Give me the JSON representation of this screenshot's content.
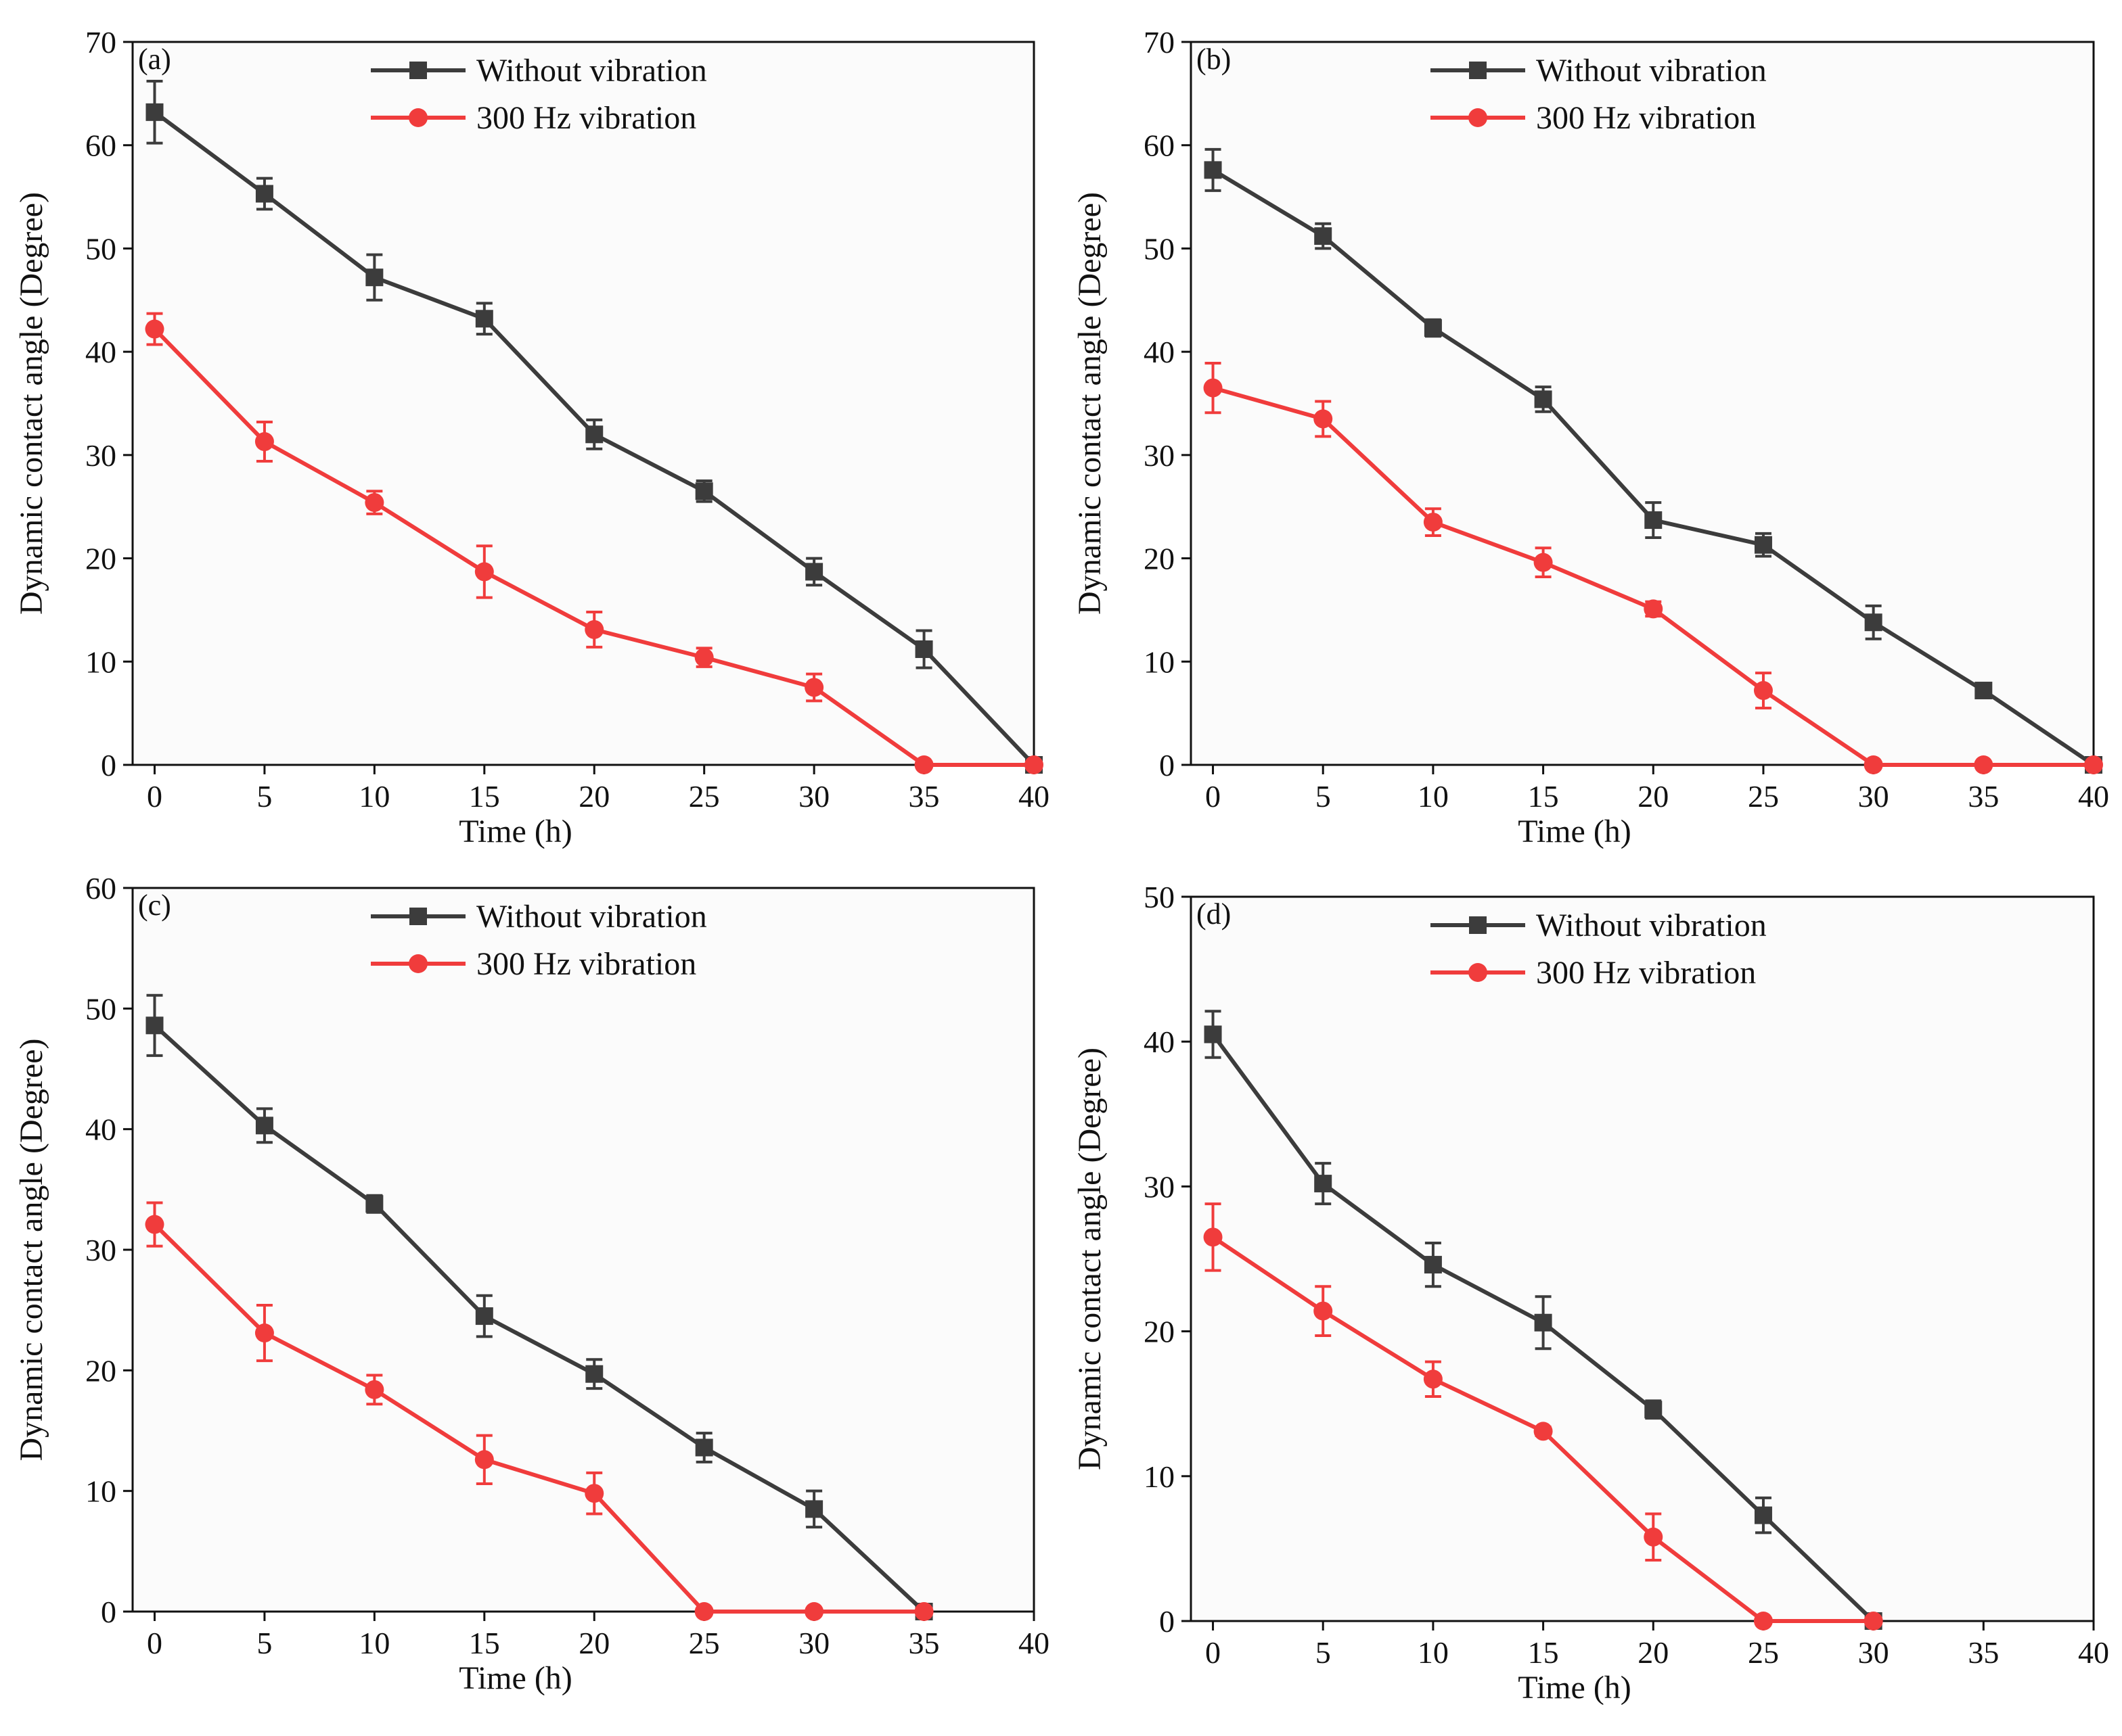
{
  "colors": {
    "plot_background": "#fbfbfb",
    "axis": "#111111",
    "without_vibration": "#3c3c3c",
    "vibration_300hz": "#f03c3c"
  },
  "chart_data": [
    {
      "type": "line",
      "panel_label": "(a)",
      "xlabel": "Time (h)",
      "ylabel": "Dynamic contact angle (Degree)",
      "xlim": [
        -1,
        40
      ],
      "ylim": [
        0,
        70
      ],
      "xticks": [
        0,
        5,
        10,
        15,
        20,
        25,
        30,
        35,
        40
      ],
      "yticks": [
        0,
        10,
        20,
        30,
        40,
        50,
        60,
        70
      ],
      "legend_position": "top-right",
      "series": [
        {
          "name": "Without vibration",
          "marker": "square",
          "color": "#3c3c3c",
          "x": [
            0,
            5,
            10,
            15,
            20,
            25,
            30,
            35,
            40
          ],
          "y": [
            63.2,
            55.3,
            47.2,
            43.2,
            32.0,
            26.5,
            18.7,
            11.2,
            0
          ],
          "err": [
            3.0,
            1.5,
            2.2,
            1.5,
            1.4,
            1.0,
            1.3,
            1.8,
            0
          ]
        },
        {
          "name": "300 Hz vibration",
          "marker": "circle",
          "color": "#f03c3c",
          "x": [
            0,
            5,
            10,
            15,
            20,
            25,
            30,
            35,
            40
          ],
          "y": [
            42.2,
            31.3,
            25.4,
            18.7,
            13.1,
            10.4,
            7.5,
            0,
            0
          ],
          "err": [
            1.5,
            1.9,
            1.1,
            2.5,
            1.7,
            0.9,
            1.3,
            0,
            0
          ]
        }
      ]
    },
    {
      "type": "line",
      "panel_label": "(b)",
      "xlabel": "Time (h)",
      "ylabel": "Dynamic contact angle (Degree)",
      "xlim": [
        -1,
        40
      ],
      "ylim": [
        0,
        70
      ],
      "xticks": [
        0,
        5,
        10,
        15,
        20,
        25,
        30,
        35,
        40
      ],
      "yticks": [
        0,
        10,
        20,
        30,
        40,
        50,
        60,
        70
      ],
      "legend_position": "top-right",
      "series": [
        {
          "name": "Without vibration",
          "marker": "square",
          "color": "#3c3c3c",
          "x": [
            0,
            5,
            10,
            15,
            20,
            25,
            30,
            35,
            40
          ],
          "y": [
            57.6,
            51.2,
            42.3,
            35.4,
            23.7,
            21.3,
            13.8,
            7.2,
            0
          ],
          "err": [
            2.0,
            1.2,
            0.8,
            1.2,
            1.7,
            1.1,
            1.6,
            0.7,
            0
          ]
        },
        {
          "name": "300 Hz vibration",
          "marker": "circle",
          "color": "#f03c3c",
          "x": [
            0,
            5,
            10,
            15,
            20,
            25,
            30,
            35,
            40
          ],
          "y": [
            36.5,
            33.5,
            23.5,
            19.6,
            15.1,
            7.2,
            0,
            0,
            0
          ],
          "err": [
            2.4,
            1.7,
            1.3,
            1.4,
            0.7,
            1.7,
            0,
            0,
            0
          ]
        }
      ]
    },
    {
      "type": "line",
      "panel_label": "(c)",
      "xlabel": "Time (h)",
      "ylabel": "Dynamic contact angle (Degree)",
      "xlim": [
        -1,
        40
      ],
      "ylim": [
        0,
        60
      ],
      "xticks": [
        0,
        5,
        10,
        15,
        20,
        25,
        30,
        35,
        40
      ],
      "yticks": [
        0,
        10,
        20,
        30,
        40,
        50,
        60
      ],
      "legend_position": "top-right",
      "series": [
        {
          "name": "Without vibration",
          "marker": "square",
          "color": "#3c3c3c",
          "x": [
            0,
            5,
            10,
            15,
            20,
            25,
            30,
            35
          ],
          "y": [
            48.6,
            40.3,
            33.8,
            24.5,
            19.7,
            13.6,
            8.5,
            0
          ],
          "err": [
            2.5,
            1.4,
            0.7,
            1.7,
            1.2,
            1.2,
            1.5,
            0
          ]
        },
        {
          "name": "300 Hz vibration",
          "marker": "circle",
          "color": "#f03c3c",
          "x": [
            0,
            5,
            10,
            15,
            20,
            25,
            30,
            35
          ],
          "y": [
            32.1,
            23.1,
            18.4,
            12.6,
            9.8,
            0,
            0,
            0
          ],
          "err": [
            1.8,
            2.3,
            1.2,
            2.0,
            1.7,
            0,
            0,
            0
          ]
        }
      ]
    },
    {
      "type": "line",
      "panel_label": "(d)",
      "xlabel": "Time (h)",
      "ylabel": "Dynamic contact angle (Degree)",
      "xlim": [
        -1,
        40
      ],
      "ylim": [
        0,
        50
      ],
      "xticks": [
        0,
        5,
        10,
        15,
        20,
        25,
        30,
        35,
        40
      ],
      "yticks": [
        0,
        10,
        20,
        30,
        40,
        50
      ],
      "legend_position": "top-right",
      "series": [
        {
          "name": "Without vibration",
          "marker": "square",
          "color": "#3c3c3c",
          "x": [
            0,
            5,
            10,
            15,
            20,
            25,
            30
          ],
          "y": [
            40.5,
            30.2,
            24.6,
            20.6,
            14.6,
            7.3,
            0
          ],
          "err": [
            1.6,
            1.4,
            1.5,
            1.8,
            0.6,
            1.2,
            0
          ]
        },
        {
          "name": "300 Hz vibration",
          "marker": "circle",
          "color": "#f03c3c",
          "x": [
            0,
            5,
            10,
            15,
            20,
            25,
            30
          ],
          "y": [
            26.5,
            21.4,
            16.7,
            13.1,
            5.8,
            0,
            0
          ],
          "err": [
            2.3,
            1.7,
            1.2,
            0.3,
            1.6,
            0,
            0
          ]
        }
      ]
    }
  ]
}
